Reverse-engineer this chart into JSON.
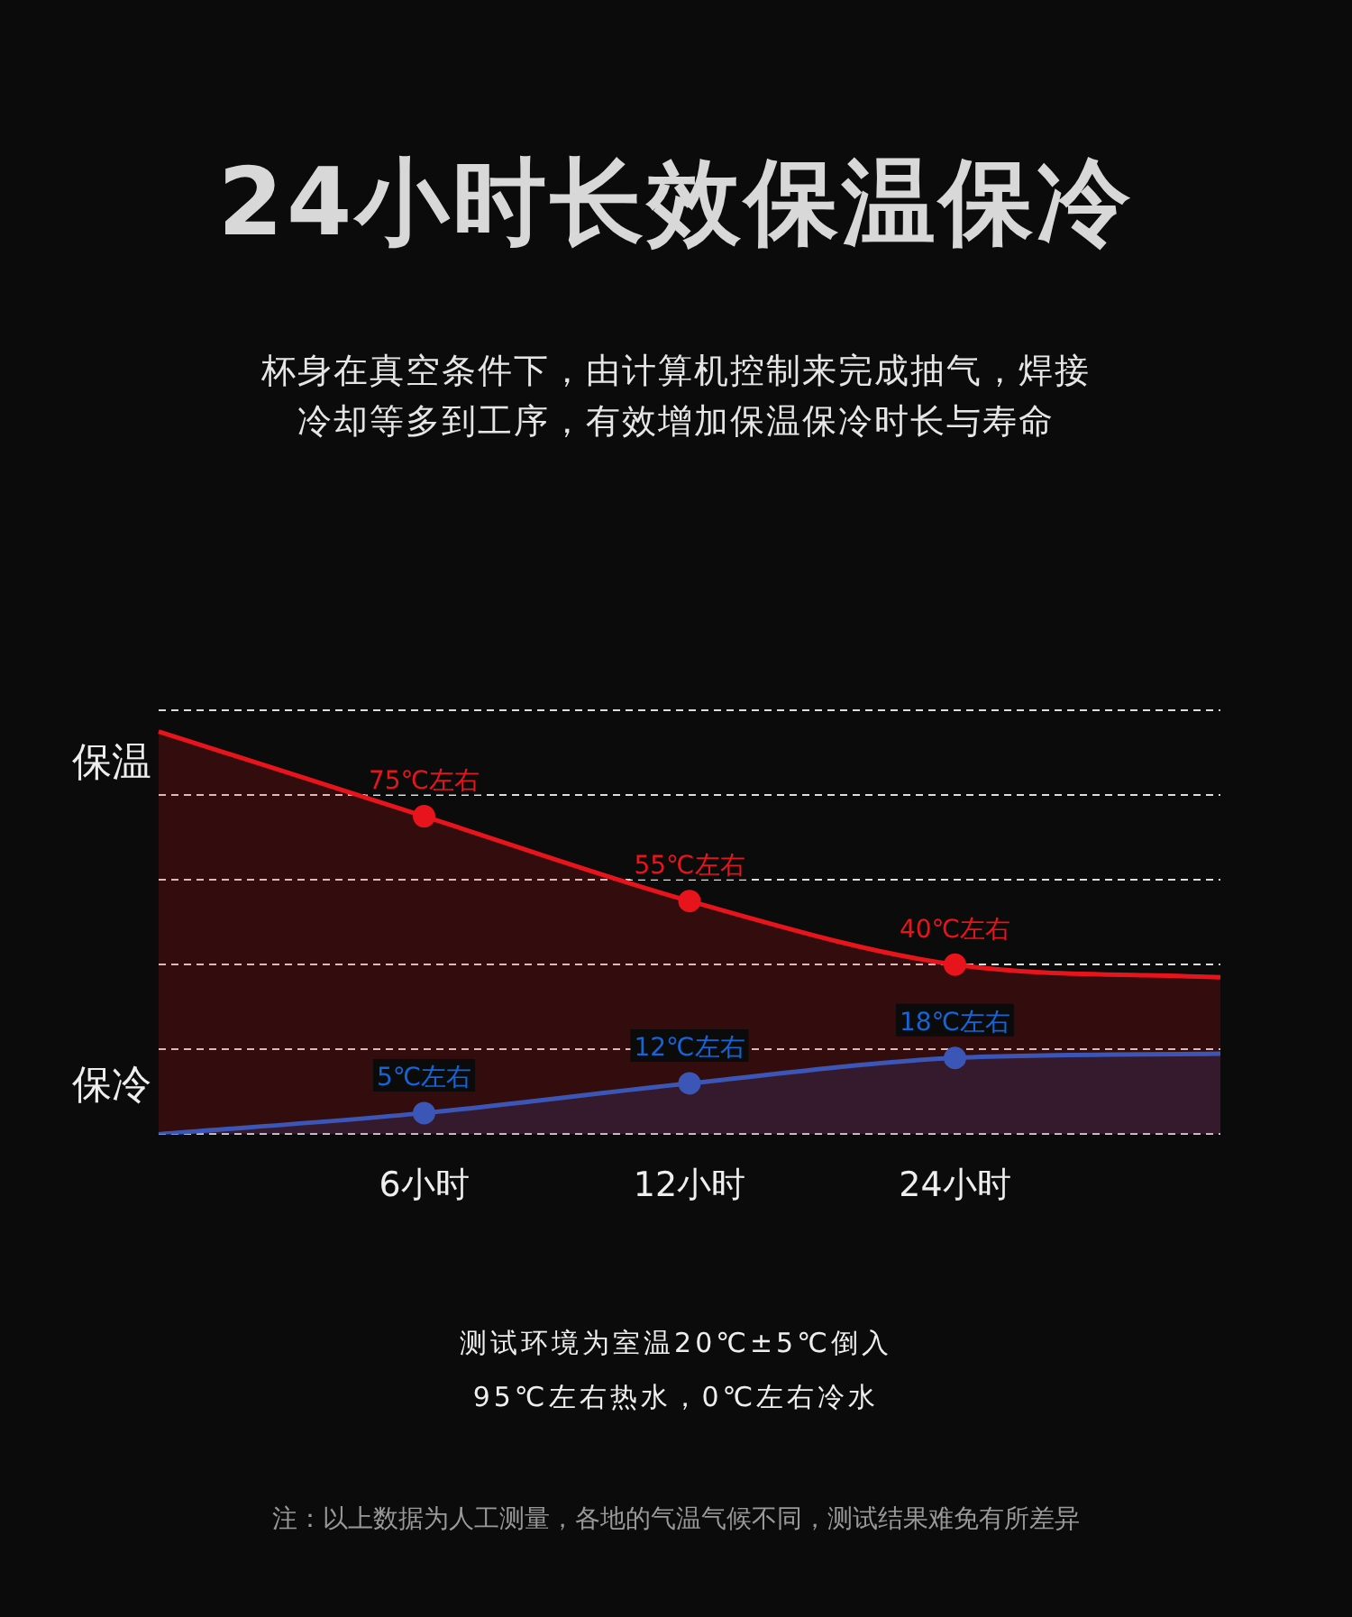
{
  "chart_data": {
    "type": "area",
    "title": "24小时长效保温保冷",
    "subtitle": "杯身在真空条件下，由计算机控制来完成抽气，焊接冷却等多到工序，有效增加保温保冷时长与寿命",
    "categories": [
      null,
      "6小时",
      "12小时",
      "24小时",
      null
    ],
    "series": [
      {
        "color": "#e8141b",
        "values": [
          95,
          75,
          55,
          40,
          37
        ],
        "value_labels": [
          null,
          "75℃左右",
          "55℃左右",
          "40℃左右",
          null
        ]
      },
      {
        "color": "#1565d8",
        "values": [
          0,
          5,
          12,
          18,
          19
        ],
        "value_labels": [
          null,
          "5℃左右",
          "12℃左右",
          "18℃左右",
          null
        ]
      }
    ],
    "ylim": [
      0,
      100
    ],
    "yticks": [
      {
        "value": 0,
        "label": null
      },
      {
        "value": 20,
        "label": null
      },
      {
        "value": 40,
        "label": null
      },
      {
        "value": 60,
        "label": null
      },
      {
        "value": 80,
        "label": null
      },
      {
        "value": 100,
        "label": null
      }
    ],
    "grid": "y",
    "legend": false,
    "marker": "circle",
    "line_style": "solid",
    "tick_labels": "x",
    "annotations": [
      "保温",
      "保冷",
      "测试环境为室温20℃±5℃倒入",
      "95℃左右热水，0℃左右冷水",
      "注：以上数据为人工测量，各地的气温气候不同，测试结果难免有所差异"
    ]
  }
}
